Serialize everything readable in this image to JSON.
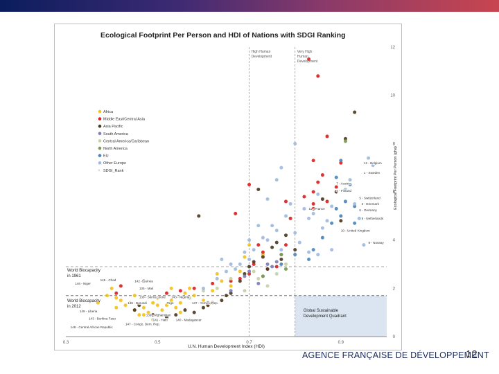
{
  "header": {
    "brand_bar": "brand-gradient"
  },
  "footer": {
    "brand": "AGENCE FRANÇAISE DE DÉVELOPPEMENT",
    "page_number": "12"
  },
  "colors": {
    "Africa": "#f2c21d",
    "Middle East/Central Asia": "#d92323",
    "Asia Pacific": "#4a3b23",
    "South America": "#7a7fb8",
    "Central America/Caribbean": "#c6d1a6",
    "North America": "#7c9a4c",
    "EU": "#4c86b8",
    "Other Europe": "#9fbadd",
    "SDGI_Rank": "#b0b0b0"
  },
  "chart_data": {
    "type": "scatter",
    "title": "Ecological Footprint Per Person and HDI of Nations with SDGI Ranking",
    "xlabel": "U.N. Human Development Index (HDI)",
    "ylabel": "Ecological Footprint Per Person (gha)",
    "xlim": [
      0.3,
      1.0
    ],
    "ylim": [
      0,
      12
    ],
    "xticks": [
      "0.3",
      "0.5",
      "0.7",
      "0.9"
    ],
    "yticks": [
      "0",
      "2",
      "4",
      "6",
      "8",
      "10",
      "12"
    ],
    "legend": [
      "Africa",
      "Middle East/Central Asia",
      "Asia Pacific",
      "South America",
      "Central America/Caribbean",
      "North America",
      "EU",
      "Other Europe",
      "SDGI_Rank"
    ],
    "reference_lines": {
      "high_hdi_x": 0.7,
      "very_high_hdi_x": 0.8,
      "world_biocapacity_1961": 2.9,
      "world_biocapacity_2012": 1.7
    },
    "text": {
      "high_hdi": [
        "High Human",
        "Development"
      ],
      "very_high_hdi": [
        "Very High",
        "Human",
        "Development"
      ],
      "biocap_1961": [
        "World Biocapacity",
        "in 1961"
      ],
      "biocap_2012": [
        "World Biocapacity",
        "in 2012"
      ],
      "quadrant": [
        "Global Sustainable",
        "Development Quadrant"
      ]
    },
    "annotations": [
      {
        "label": "12 - Belgium",
        "x": 0.95,
        "y": 7.15
      },
      {
        "label": "1 - Sweden",
        "x": 0.95,
        "y": 6.75
      },
      {
        "label": "7 - Austria",
        "x": 0.89,
        "y": 6.3
      },
      {
        "label": "4 - Finland",
        "x": 0.89,
        "y": 6.0
      },
      {
        "label": "5 - Switzerland",
        "x": 0.94,
        "y": 5.7
      },
      {
        "label": "3 - Denmark",
        "x": 0.945,
        "y": 5.45
      },
      {
        "label": "6 - Germany",
        "x": 0.94,
        "y": 5.2
      },
      {
        "label": "11 - France",
        "x": 0.83,
        "y": 5.25
      },
      {
        "label": "8 - Netherlands",
        "x": 0.945,
        "y": 4.85
      },
      {
        "label": "10 - United Kingdom",
        "x": 0.9,
        "y": 4.35
      },
      {
        "label": "9 - Norway",
        "x": 0.96,
        "y": 3.85
      },
      {
        "label": "145 - Chad",
        "x": 0.375,
        "y": 2.3
      },
      {
        "label": "142 - Guinea",
        "x": 0.45,
        "y": 2.25
      },
      {
        "label": "146 - Niger",
        "x": 0.32,
        "y": 2.15
      },
      {
        "label": "135 - Mali",
        "x": 0.46,
        "y": 1.95
      },
      {
        "label": "138 - Sierra Leone",
        "x": 0.46,
        "y": 1.6
      },
      {
        "label": "143 - Nigeria",
        "x": 0.53,
        "y": 1.6
      },
      {
        "label": "136 - Burundi",
        "x": 0.435,
        "y": 1.35
      },
      {
        "label": "Togo",
        "x": 0.52,
        "y": 1.35
      },
      {
        "label": "137 - Yemen, Rep.",
        "x": 0.575,
        "y": 1.35
      },
      {
        "label": "149 - Liberia",
        "x": 0.33,
        "y": 1.0
      },
      {
        "label": "139 - Afghanistan",
        "x": 0.475,
        "y": 0.85
      },
      {
        "label": "143 - Burkina Faso",
        "x": 0.35,
        "y": 0.7
      },
      {
        "label": "141 - Haiti",
        "x": 0.49,
        "y": 0.65
      },
      {
        "label": "140 - Madagascar",
        "x": 0.54,
        "y": 0.65
      },
      {
        "label": "147 - Congo, Dem. Rep.",
        "x": 0.43,
        "y": 0.48
      },
      {
        "label": "148 - Central African Republic",
        "x": 0.31,
        "y": 0.35
      }
    ],
    "series": [
      {
        "name": "Africa",
        "points": [
          [
            0.37,
            1.4
          ],
          [
            0.39,
            1.7
          ],
          [
            0.4,
            2.0
          ],
          [
            0.41,
            1.2
          ],
          [
            0.42,
            1.5
          ],
          [
            0.43,
            1.3
          ],
          [
            0.44,
            1.4
          ],
          [
            0.45,
            1.1
          ],
          [
            0.46,
            0.9
          ],
          [
            0.47,
            1.2
          ],
          [
            0.48,
            1.0
          ],
          [
            0.49,
            1.4
          ],
          [
            0.5,
            1.6
          ],
          [
            0.51,
            1.1
          ],
          [
            0.52,
            1.3
          ],
          [
            0.53,
            1.5
          ],
          [
            0.54,
            1.2
          ],
          [
            0.55,
            1.4
          ],
          [
            0.56,
            1.8
          ],
          [
            0.57,
            2.0
          ],
          [
            0.58,
            1.7
          ],
          [
            0.6,
            1.5
          ],
          [
            0.62,
            1.9
          ],
          [
            0.64,
            2.3
          ],
          [
            0.66,
            2.1
          ],
          [
            0.68,
            2.7
          ],
          [
            0.69,
            3.3
          ],
          [
            0.7,
            3.8
          ],
          [
            0.73,
            3.4
          ],
          [
            0.5,
            1.3
          ],
          [
            0.45,
            1.7
          ],
          [
            0.41,
            1.6
          ],
          [
            0.47,
            0.9
          ],
          [
            0.53,
            2.0
          ],
          [
            0.61,
            1.3
          ],
          [
            0.55,
            1.0
          ],
          [
            0.63,
            2.6
          ]
        ]
      },
      {
        "name": "Middle East/Central Asia",
        "points": [
          [
            0.41,
            1.8
          ],
          [
            0.42,
            2.1
          ],
          [
            0.47,
            2.3
          ],
          [
            0.52,
            1.8
          ],
          [
            0.55,
            1.9
          ],
          [
            0.58,
            2.0
          ],
          [
            0.62,
            2.2
          ],
          [
            0.66,
            2.3
          ],
          [
            0.68,
            2.4
          ],
          [
            0.7,
            2.6
          ],
          [
            0.71,
            3.0
          ],
          [
            0.72,
            3.8
          ],
          [
            0.73,
            3.5
          ],
          [
            0.74,
            2.8
          ],
          [
            0.76,
            2.9
          ],
          [
            0.78,
            3.8
          ],
          [
            0.67,
            5.1
          ],
          [
            0.7,
            6.3
          ],
          [
            0.78,
            5.6
          ],
          [
            0.79,
            4.9
          ],
          [
            0.82,
            5.8
          ],
          [
            0.84,
            6.0
          ],
          [
            0.84,
            5.3
          ],
          [
            0.85,
            6.4
          ],
          [
            0.86,
            6.7
          ],
          [
            0.87,
            5.6
          ],
          [
            0.89,
            6.2
          ],
          [
            0.9,
            7.2
          ],
          [
            0.84,
            7.3
          ],
          [
            0.84,
            5.5
          ],
          [
            0.87,
            8.3
          ],
          [
            0.83,
            11.5
          ],
          [
            0.85,
            10.8
          ]
        ]
      },
      {
        "name": "Asia Pacific",
        "points": [
          [
            0.45,
            1.1
          ],
          [
            0.46,
            1.3
          ],
          [
            0.49,
            0.9
          ],
          [
            0.52,
            0.8
          ],
          [
            0.54,
            0.9
          ],
          [
            0.56,
            1.1
          ],
          [
            0.58,
            1.0
          ],
          [
            0.6,
            1.2
          ],
          [
            0.61,
            1.3
          ],
          [
            0.62,
            1.4
          ],
          [
            0.64,
            1.5
          ],
          [
            0.65,
            1.7
          ],
          [
            0.66,
            1.8
          ],
          [
            0.68,
            2.3
          ],
          [
            0.69,
            2.6
          ],
          [
            0.7,
            2.9
          ],
          [
            0.71,
            3.1
          ],
          [
            0.73,
            3.3
          ],
          [
            0.74,
            2.8
          ],
          [
            0.75,
            3.7
          ],
          [
            0.76,
            3.9
          ],
          [
            0.77,
            3.2
          ],
          [
            0.78,
            4.2
          ],
          [
            0.8,
            3.6
          ],
          [
            0.86,
            5.7
          ],
          [
            0.89,
            6.0
          ],
          [
            0.9,
            4.8
          ],
          [
            0.91,
            8.2
          ],
          [
            0.93,
            9.3
          ],
          [
            0.59,
            5.0
          ],
          [
            0.72,
            6.1
          ]
        ]
      },
      {
        "name": "South America",
        "points": [
          [
            0.61,
            1.4
          ],
          [
            0.66,
            1.9
          ],
          [
            0.69,
            2.5
          ],
          [
            0.7,
            2.7
          ],
          [
            0.72,
            2.2
          ],
          [
            0.73,
            2.5
          ],
          [
            0.74,
            3.0
          ],
          [
            0.75,
            2.9
          ],
          [
            0.76,
            3.1
          ],
          [
            0.77,
            3.4
          ]
        ]
      },
      {
        "name": "Central America/Caribbean",
        "points": [
          [
            0.49,
            0.7
          ],
          [
            0.57,
            1.6
          ],
          [
            0.6,
            1.9
          ],
          [
            0.63,
            2.0
          ],
          [
            0.66,
            2.4
          ],
          [
            0.69,
            1.9
          ],
          [
            0.71,
            2.7
          ],
          [
            0.72,
            2.4
          ],
          [
            0.74,
            2.1
          ],
          [
            0.76,
            2.6
          ],
          [
            0.78,
            3.0
          ]
        ]
      },
      {
        "name": "North America",
        "points": [
          [
            0.73,
            2.5
          ],
          [
            0.77,
            3.4
          ],
          [
            0.78,
            2.8
          ],
          [
            0.91,
            8.1
          ]
        ]
      },
      {
        "name": "EU",
        "points": [
          [
            0.77,
            3.0
          ],
          [
            0.8,
            3.4
          ],
          [
            0.83,
            3.2
          ],
          [
            0.84,
            3.6
          ],
          [
            0.86,
            4.1
          ],
          [
            0.88,
            4.7
          ],
          [
            0.89,
            5.3
          ],
          [
            0.9,
            5.0
          ],
          [
            0.91,
            5.6
          ],
          [
            0.92,
            6.3
          ],
          [
            0.93,
            5.4
          ],
          [
            0.93,
            4.7
          ],
          [
            0.9,
            7.3
          ],
          [
            0.89,
            6.6
          ]
        ]
      },
      {
        "name": "Other Europe",
        "points": [
          [
            0.6,
            2.0
          ],
          [
            0.63,
            2.4
          ],
          [
            0.65,
            2.7
          ],
          [
            0.67,
            2.8
          ],
          [
            0.68,
            3.0
          ],
          [
            0.7,
            3.2
          ],
          [
            0.71,
            3.6
          ],
          [
            0.73,
            4.1
          ],
          [
            0.74,
            4.0
          ],
          [
            0.75,
            4.6
          ],
          [
            0.76,
            4.4
          ],
          [
            0.77,
            3.6
          ],
          [
            0.78,
            5.0
          ],
          [
            0.79,
            5.5
          ],
          [
            0.8,
            4.3
          ],
          [
            0.81,
            3.9
          ],
          [
            0.82,
            5.3
          ],
          [
            0.83,
            4.9
          ],
          [
            0.84,
            5.1
          ],
          [
            0.85,
            5.9
          ],
          [
            0.86,
            4.5
          ],
          [
            0.87,
            4.8
          ],
          [
            0.88,
            5.4
          ],
          [
            0.91,
            6.1
          ],
          [
            0.92,
            6.5
          ],
          [
            0.93,
            5.5
          ],
          [
            0.94,
            4.9
          ],
          [
            0.95,
            3.8
          ],
          [
            0.96,
            7.4
          ],
          [
            0.97,
            7.1
          ],
          [
            0.8,
            8.0
          ],
          [
            0.77,
            7.0
          ],
          [
            0.76,
            6.5
          ],
          [
            0.74,
            5.7
          ],
          [
            0.83,
            3.5
          ],
          [
            0.85,
            3.4
          ],
          [
            0.88,
            3.6
          ],
          [
            0.72,
            4.6
          ],
          [
            0.7,
            4.0
          ],
          [
            0.69,
            3.5
          ],
          [
            0.66,
            3.0
          ],
          [
            0.64,
            3.2
          ]
        ]
      }
    ]
  }
}
